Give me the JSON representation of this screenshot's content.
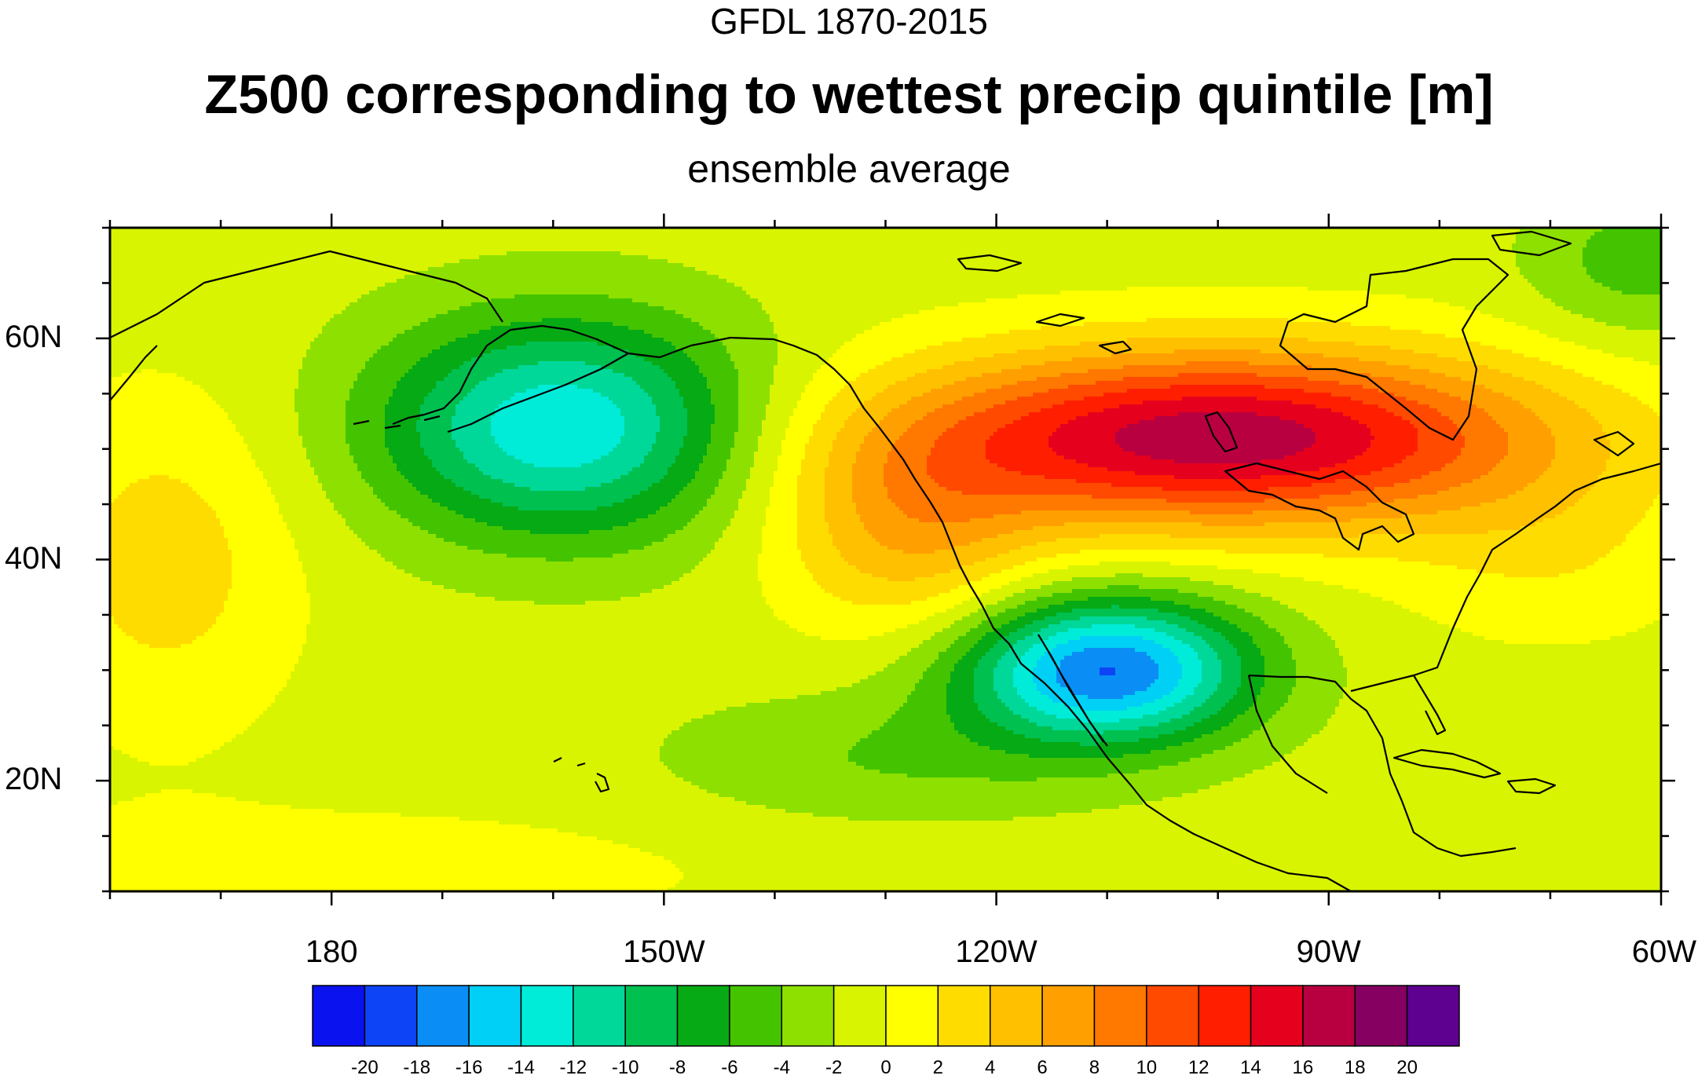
{
  "header": {
    "model": "GFDL 1870-2015",
    "title": "Z500 corresponding to wettest precip quintile [m]",
    "subtitle": "ensemble average"
  },
  "axes": {
    "lat_labels": [
      "60N",
      "40N",
      "20N"
    ],
    "lon_labels": [
      "180",
      "150W",
      "120W",
      "90W",
      "60W"
    ],
    "lat_range": [
      10,
      70
    ],
    "lon_range": [
      160,
      300
    ]
  },
  "colorbar": {
    "labels": [
      "-20",
      "-18",
      "-16",
      "-14",
      "-12",
      "-10",
      "-8",
      "-6",
      "-4",
      "-2",
      "0",
      "2",
      "4",
      "6",
      "8",
      "10",
      "12",
      "14",
      "16",
      "18",
      "20"
    ],
    "colors": [
      "#0a12f0",
      "#0d44f5",
      "#0a8ef5",
      "#00d0f5",
      "#00ecd8",
      "#00d89a",
      "#00c050",
      "#06aa14",
      "#44c400",
      "#8ee000",
      "#d8f400",
      "#ffff00",
      "#ffdc00",
      "#ffc000",
      "#ffa000",
      "#ff7800",
      "#ff4a00",
      "#ff1e00",
      "#e5001e",
      "#b80040",
      "#850060",
      "#5e0090"
    ]
  },
  "chart_data": {
    "type": "heatmap",
    "field": "Z500 anomaly [m]",
    "levels": [
      -20,
      -18,
      -16,
      -14,
      -12,
      -10,
      -8,
      -6,
      -4,
      -2,
      0,
      2,
      4,
      6,
      8,
      10,
      12,
      14,
      16,
      18,
      20
    ],
    "features": [
      {
        "kind": "low",
        "lon": 201,
        "lat": 52,
        "value": -13
      },
      {
        "kind": "low",
        "lon": 251,
        "lat": 30,
        "value": -17
      },
      {
        "kind": "high",
        "lon": 260,
        "lat": 51,
        "value": 17
      },
      {
        "kind": "high",
        "lon": 165,
        "lat": 40,
        "value": 3
      }
    ]
  }
}
